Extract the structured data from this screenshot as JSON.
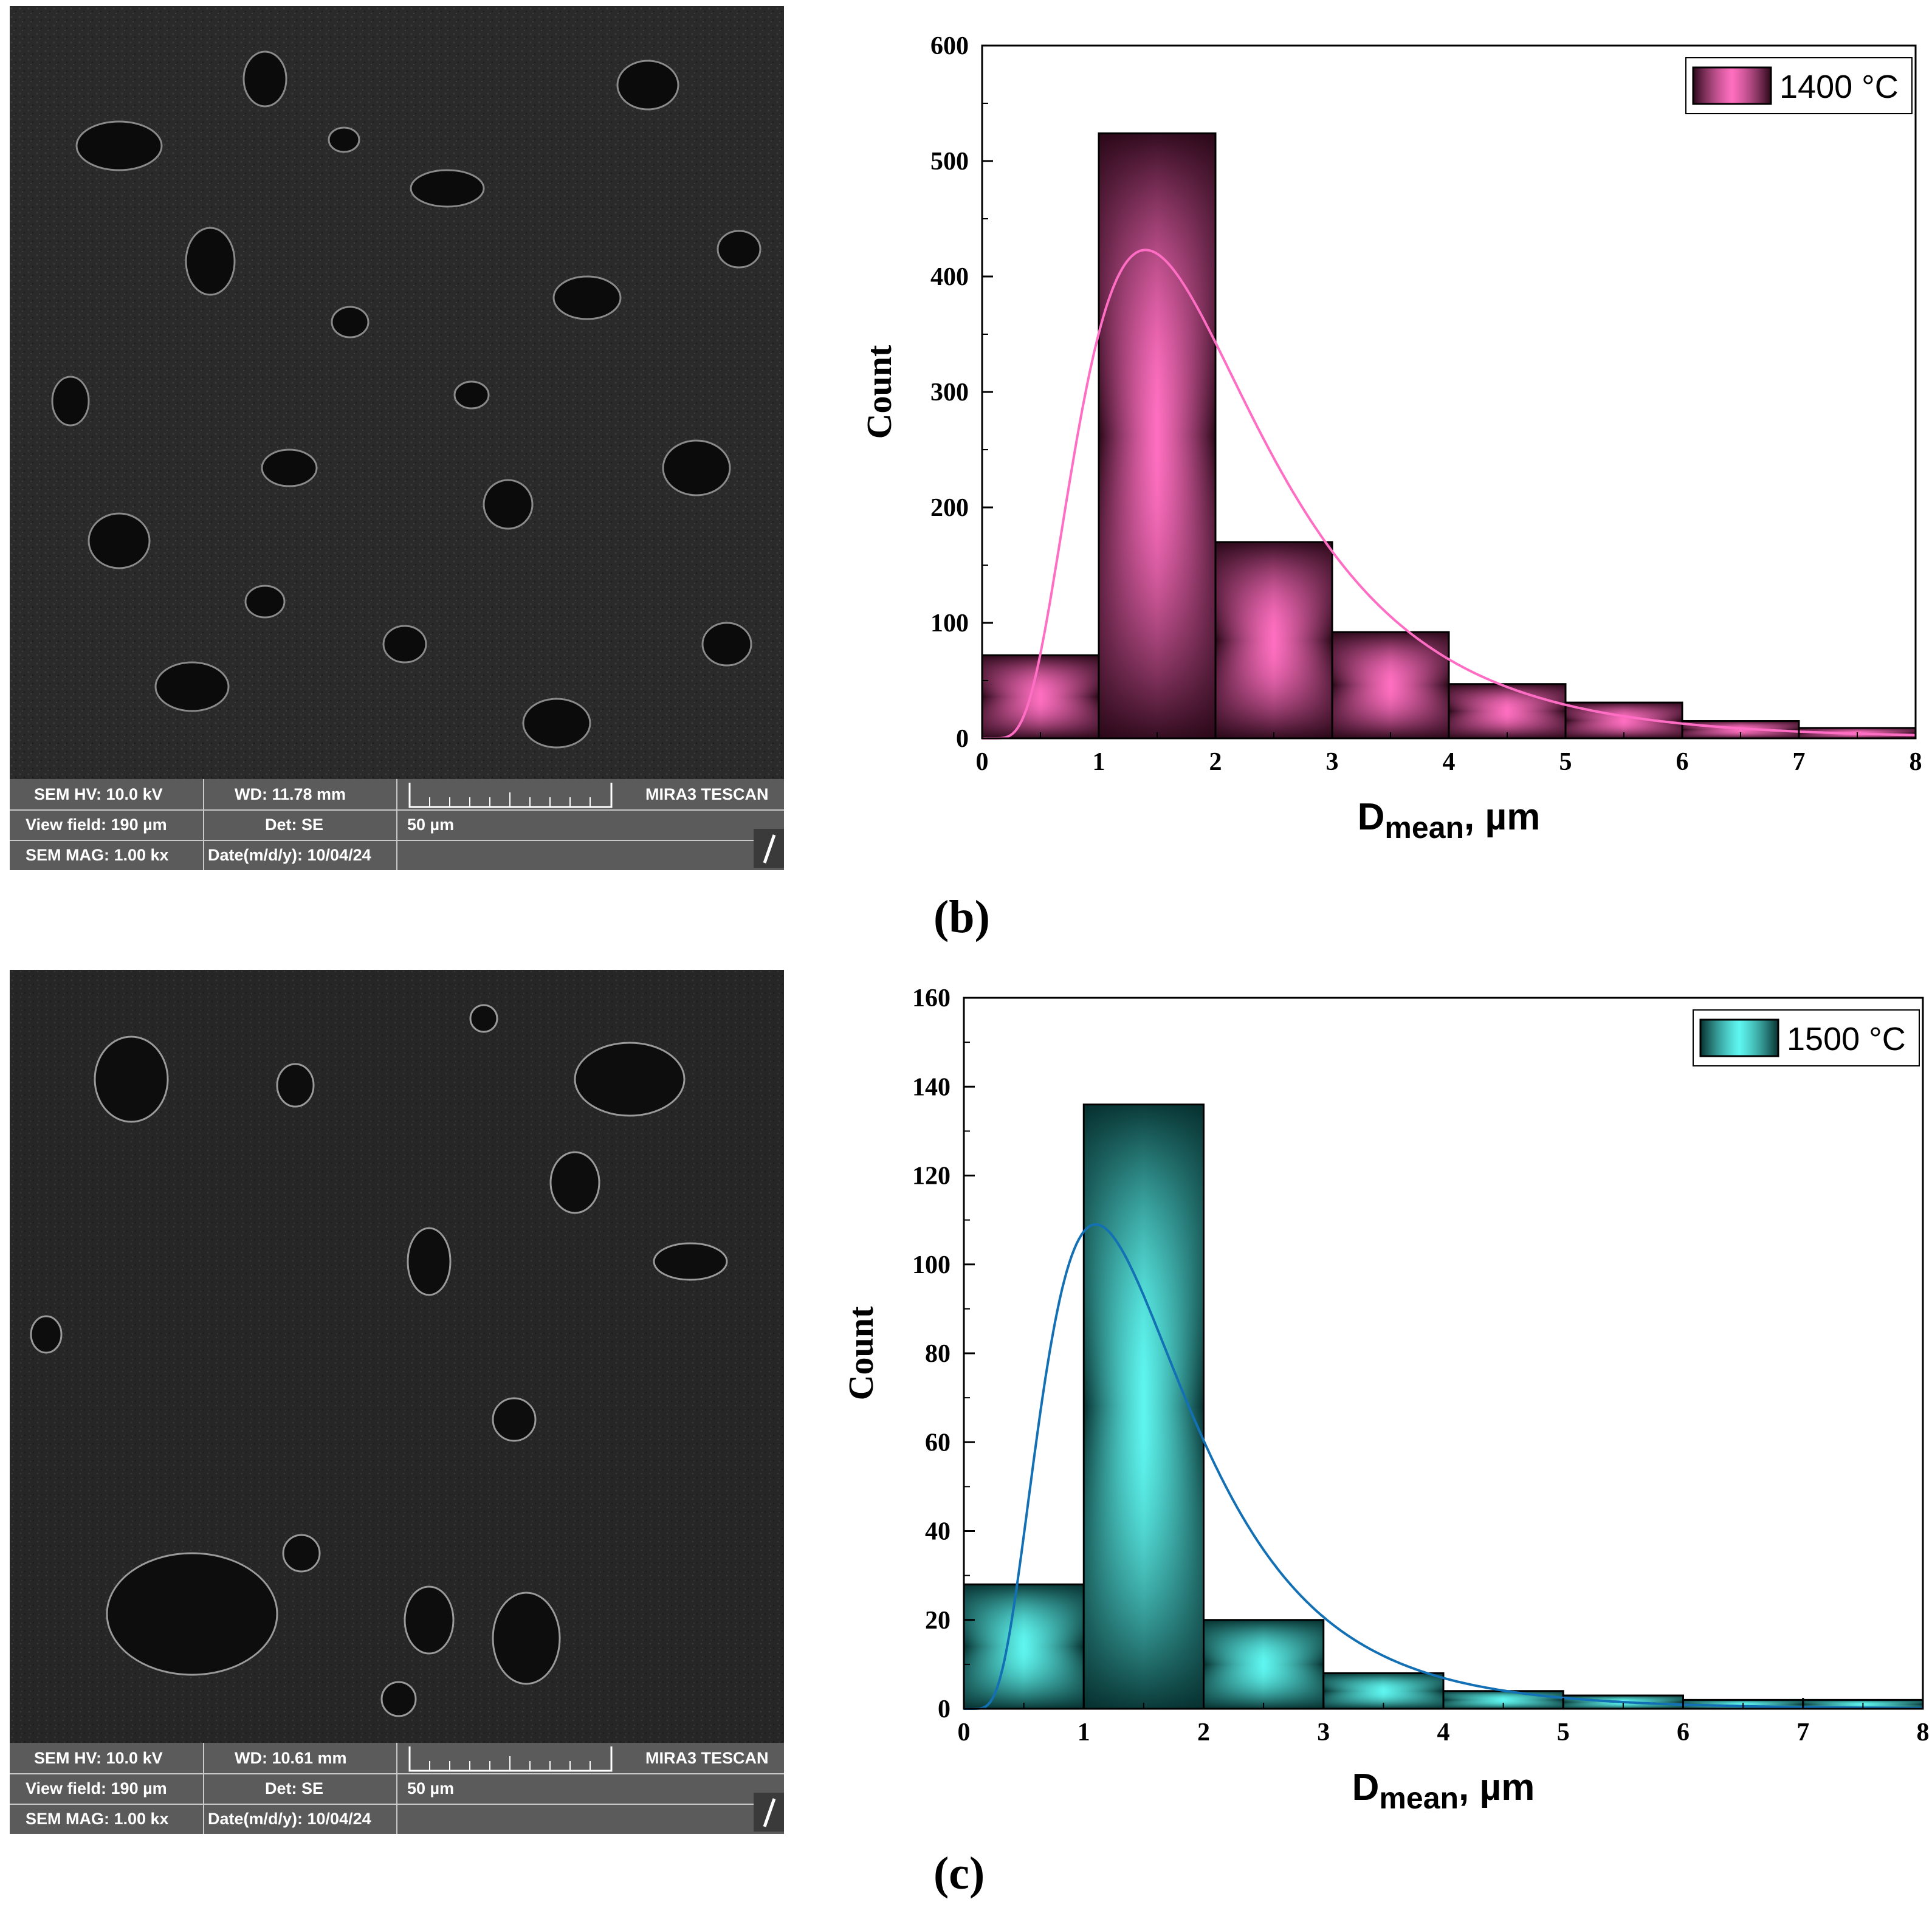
{
  "panels": [
    {
      "sem": {
        "hv": "SEM HV: 10.0 kV",
        "wd": "WD: 11.78 mm",
        "brand": "MIRA3 TESCAN",
        "view_field": "View field: 190 µm",
        "det": "Det: SE",
        "scale": "50 µm",
        "mag": "SEM MAG: 1.00 kx",
        "date": "Date(m/d/y): 10/04/24"
      },
      "label": "(b)"
    },
    {
      "sem": {
        "hv": "SEM HV: 10.0 kV",
        "wd": "WD: 10.61 mm",
        "brand": "MIRA3 TESCAN",
        "view_field": "View field: 190 µm",
        "det": "Det: SE",
        "scale": "50 µm",
        "mag": "SEM MAG: 1.00 kx",
        "date": "Date(m/d/y): 10/04/24"
      },
      "label": "(c)"
    }
  ],
  "chart_data": [
    {
      "type": "bar",
      "bins": [
        [
          0,
          1
        ],
        [
          1,
          2
        ],
        [
          2,
          3
        ],
        [
          3,
          4
        ],
        [
          4,
          5
        ],
        [
          5,
          6
        ],
        [
          6,
          7
        ],
        [
          7,
          8
        ]
      ],
      "values": [
        72,
        524,
        170,
        92,
        47,
        31,
        15,
        9
      ],
      "series": [
        {
          "name": "1400 °C",
          "values": [
            72,
            524,
            170,
            92,
            47,
            31,
            15,
            9
          ]
        }
      ],
      "fit_curve": {
        "type": "lognormal",
        "peak_x": 1.4,
        "peak_y": 423
      },
      "xlabel_main": "D",
      "xlabel_sub": "mean",
      "xlabel_unit": ", µm",
      "ylabel": "Count",
      "xlim": [
        0,
        8
      ],
      "ylim": [
        0,
        600
      ],
      "xticks": [
        0,
        1,
        2,
        3,
        4,
        5,
        6,
        7,
        8
      ],
      "yticks": [
        0,
        100,
        200,
        300,
        400,
        500,
        600
      ],
      "legend": "top-right",
      "colors": {
        "bar_light": "#ff6fc0",
        "bar_dark": "#2a0818",
        "curve": "#ff6ec4"
      }
    },
    {
      "type": "bar",
      "bins": [
        [
          0,
          1
        ],
        [
          1,
          2
        ],
        [
          2,
          3
        ],
        [
          3,
          4
        ],
        [
          4,
          5
        ],
        [
          5,
          6
        ],
        [
          6,
          7
        ],
        [
          7,
          8
        ]
      ],
      "values": [
        28,
        136,
        20,
        8,
        4,
        3,
        2,
        2
      ],
      "series": [
        {
          "name": "1500 °C",
          "values": [
            28,
            136,
            20,
            8,
            4,
            3,
            2,
            2
          ]
        }
      ],
      "fit_curve": {
        "type": "lognormal",
        "peak_x": 1.1,
        "peak_y": 109
      },
      "xlabel_main": "D",
      "xlabel_sub": "mean",
      "xlabel_unit": ", µm",
      "ylabel": "Count",
      "xlim": [
        0,
        8
      ],
      "ylim": [
        0,
        160
      ],
      "xticks": [
        0,
        1,
        2,
        3,
        4,
        5,
        6,
        7,
        8
      ],
      "yticks": [
        0,
        20,
        40,
        60,
        80,
        100,
        120,
        140,
        160
      ],
      "legend": "top-right",
      "colors": {
        "bar_light": "#5ff6f0",
        "bar_dark": "#06302f",
        "curve": "#1470b4"
      }
    }
  ]
}
